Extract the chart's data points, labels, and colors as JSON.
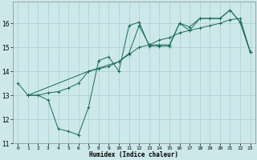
{
  "xlabel": "Humidex (Indice chaleur)",
  "ylabel": "",
  "bg_color": "#cce8ea",
  "line_color": "#1a6b5a",
  "grid_color": "#aacfd2",
  "xlim": [
    -0.5,
    23.5
  ],
  "ylim": [
    11,
    16.9
  ],
  "xticks": [
    0,
    1,
    2,
    3,
    4,
    5,
    6,
    7,
    8,
    9,
    10,
    11,
    12,
    13,
    14,
    15,
    16,
    17,
    18,
    19,
    20,
    21,
    22,
    23
  ],
  "yticks": [
    11,
    12,
    13,
    14,
    15,
    16
  ],
  "line1_x": [
    0,
    1,
    2,
    3,
    4,
    5,
    6,
    7,
    8,
    9,
    10,
    11,
    12,
    13,
    14,
    15,
    16,
    17,
    18,
    19,
    20,
    21,
    22,
    23
  ],
  "line1_y": [
    13.5,
    13.0,
    13.0,
    12.8,
    11.6,
    11.5,
    11.35,
    12.5,
    14.45,
    14.6,
    14.0,
    15.9,
    16.05,
    15.05,
    15.05,
    15.05,
    16.0,
    15.85,
    16.2,
    16.2,
    16.2,
    16.55,
    16.05,
    14.8
  ],
  "line2_x": [
    1,
    2,
    3,
    4,
    5,
    6,
    7,
    8,
    9,
    10,
    11,
    12,
    13,
    14,
    15,
    16,
    17,
    18,
    19,
    20,
    21,
    22,
    23
  ],
  "line2_y": [
    13.0,
    13.0,
    13.1,
    13.15,
    13.3,
    13.5,
    14.0,
    14.1,
    14.2,
    14.4,
    14.7,
    15.0,
    15.1,
    15.3,
    15.4,
    15.6,
    15.7,
    15.8,
    15.9,
    16.0,
    16.15,
    16.2,
    14.8
  ],
  "line3_x": [
    1,
    7,
    10,
    11,
    12,
    13,
    14,
    15,
    16,
    17,
    18,
    19,
    20,
    21,
    22,
    23
  ],
  "line3_y": [
    13.0,
    14.0,
    14.4,
    14.75,
    15.9,
    15.1,
    15.1,
    15.1,
    16.0,
    15.7,
    16.2,
    16.2,
    16.2,
    16.55,
    16.05,
    14.8
  ]
}
